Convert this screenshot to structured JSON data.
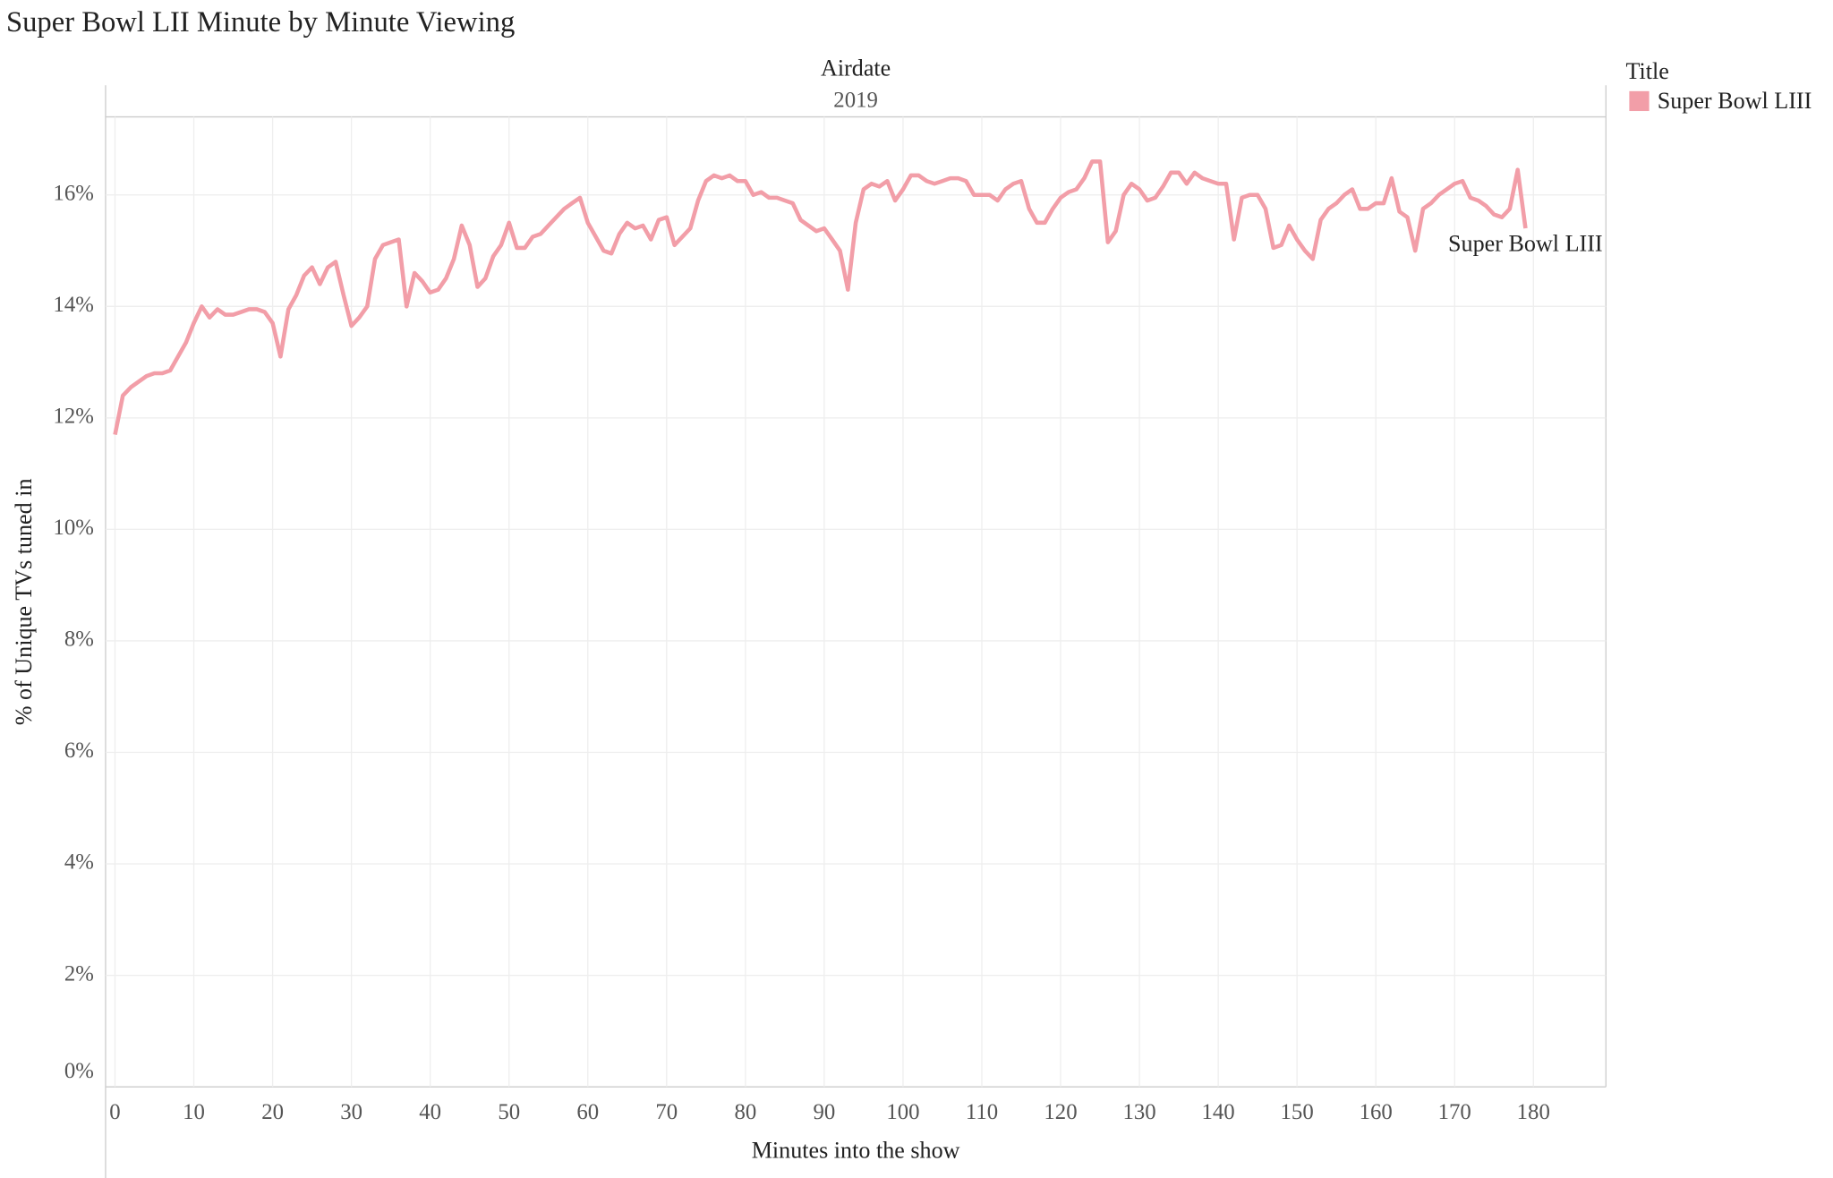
{
  "chart_data": {
    "type": "line",
    "title": "Super Bowl LII Minute by Minute Viewing",
    "header_title": "Airdate",
    "header_value": "2019",
    "x_label": "Minutes into the show",
    "y_label": "% of Unique TVs tuned in",
    "legend_title": "Title",
    "grid": true,
    "xlim": [
      -1.2,
      189.2
    ],
    "ylim": [
      0,
      17.4
    ],
    "xticks": [
      0,
      10,
      20,
      30,
      40,
      50,
      60,
      70,
      80,
      90,
      100,
      110,
      120,
      130,
      140,
      150,
      160,
      170,
      180
    ],
    "yticks": [
      {
        "value": 0,
        "label": "0%"
      },
      {
        "value": 2,
        "label": "2%"
      },
      {
        "value": 4,
        "label": "4%"
      },
      {
        "value": 6,
        "label": "6%"
      },
      {
        "value": 8,
        "label": "8%"
      },
      {
        "value": 10,
        "label": "10%"
      },
      {
        "value": 12,
        "label": "12%"
      },
      {
        "value": 14,
        "label": "14%"
      },
      {
        "value": 16,
        "label": "16%"
      }
    ],
    "x": [
      0,
      1,
      2,
      3,
      4,
      5,
      6,
      7,
      8,
      9,
      10,
      11,
      12,
      13,
      14,
      15,
      16,
      17,
      18,
      19,
      20,
      21,
      22,
      23,
      24,
      25,
      26,
      27,
      28,
      29,
      30,
      31,
      32,
      33,
      34,
      35,
      36,
      37,
      38,
      39,
      40,
      41,
      42,
      43,
      44,
      45,
      46,
      47,
      48,
      49,
      50,
      51,
      52,
      53,
      54,
      55,
      56,
      57,
      58,
      59,
      60,
      61,
      62,
      63,
      64,
      65,
      66,
      67,
      68,
      69,
      70,
      71,
      72,
      73,
      74,
      75,
      76,
      77,
      78,
      79,
      80,
      81,
      82,
      83,
      84,
      85,
      86,
      87,
      88,
      89,
      90,
      91,
      92,
      93,
      94,
      95,
      96,
      97,
      98,
      99,
      100,
      101,
      102,
      103,
      104,
      105,
      106,
      107,
      108,
      109,
      110,
      111,
      112,
      113,
      114,
      115,
      116,
      117,
      118,
      119,
      120,
      121,
      122,
      123,
      124,
      125,
      126,
      127,
      128,
      129,
      130,
      131,
      132,
      133,
      134,
      135,
      136,
      137,
      138,
      139,
      140,
      141,
      142,
      143,
      144,
      145,
      146,
      147,
      148,
      149,
      150,
      151,
      152,
      153,
      154,
      155,
      156,
      157,
      158,
      159,
      160,
      161,
      162,
      163,
      164,
      165,
      166,
      167,
      168,
      169,
      170,
      171,
      172,
      173,
      174,
      175,
      176,
      177,
      178,
      179
    ],
    "series": [
      {
        "name": "Super Bowl LIII",
        "color": "#f29ea8",
        "values": [
          11.7,
          12.4,
          12.55,
          12.65,
          12.75,
          12.8,
          12.8,
          12.85,
          13.1,
          13.35,
          13.7,
          14.0,
          13.8,
          13.95,
          13.85,
          13.85,
          13.9,
          13.95,
          13.95,
          13.9,
          13.7,
          13.1,
          13.95,
          14.2,
          14.55,
          14.7,
          14.4,
          14.7,
          14.8,
          14.2,
          13.65,
          13.8,
          14.0,
          14.85,
          15.1,
          15.15,
          15.2,
          14.0,
          14.6,
          14.45,
          14.25,
          14.3,
          14.5,
          14.85,
          15.45,
          15.1,
          14.35,
          14.5,
          14.9,
          15.1,
          15.5,
          15.05,
          15.05,
          15.25,
          15.3,
          15.45,
          15.6,
          15.75,
          15.85,
          15.95,
          15.5,
          15.25,
          15.0,
          14.95,
          15.3,
          15.5,
          15.4,
          15.45,
          15.2,
          15.55,
          15.6,
          15.1,
          15.25,
          15.4,
          15.9,
          16.25,
          16.35,
          16.3,
          16.35,
          16.25,
          16.25,
          16.0,
          16.05,
          15.95,
          15.95,
          15.9,
          15.85,
          15.55,
          15.45,
          15.35,
          15.4,
          15.2,
          15.0,
          14.3,
          15.5,
          16.1,
          16.2,
          16.15,
          16.25,
          15.9,
          16.1,
          16.35,
          16.35,
          16.25,
          16.2,
          16.25,
          16.3,
          16.3,
          16.25,
          16.0,
          16.0,
          16.0,
          15.9,
          16.1,
          16.2,
          16.25,
          15.75,
          15.5,
          15.5,
          15.75,
          15.95,
          16.05,
          16.1,
          16.3,
          16.6,
          16.6,
          15.15,
          15.35,
          16.0,
          16.2,
          16.1,
          15.9,
          15.95,
          16.15,
          16.4,
          16.4,
          16.2,
          16.4,
          16.3,
          16.25,
          16.2,
          16.2,
          15.2,
          15.95,
          16.0,
          16.0,
          15.75,
          15.05,
          15.1,
          15.45,
          15.2,
          15.0,
          14.85,
          15.55,
          15.75,
          15.85,
          16.0,
          16.1,
          15.75,
          15.75,
          15.85,
          15.85,
          16.3,
          15.7,
          15.6,
          15.0,
          15.75,
          15.85,
          16.0,
          16.1,
          16.2,
          16.25,
          15.95,
          15.9,
          15.8,
          15.65,
          15.6,
          15.75,
          16.45,
          15.4
        ]
      }
    ]
  }
}
